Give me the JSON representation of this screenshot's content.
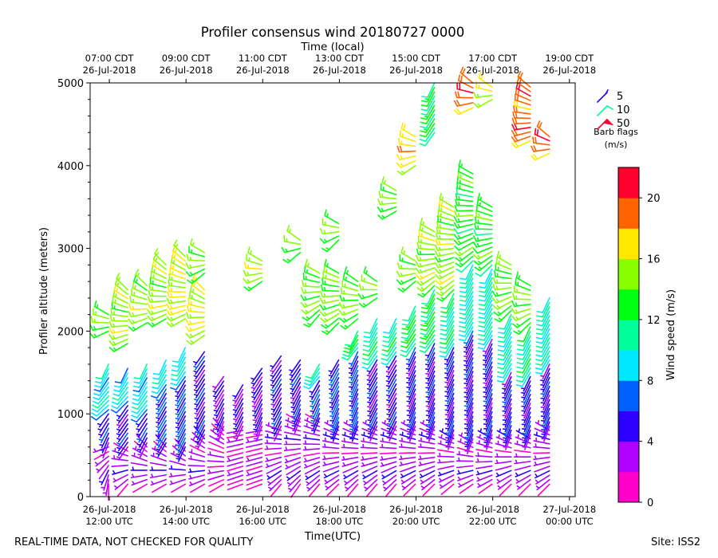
{
  "chart_data": {
    "type": "wind-barb-profile",
    "title": "Profiler consensus wind 20180727 0000",
    "xlabel": "Time(UTC)",
    "ylabel": "Profiler altitude (meters)",
    "top_axis_label": "Time (local)",
    "ylim": [
      0,
      5000
    ],
    "xlim_hours_utc": [
      11.5,
      24.15
    ],
    "y_ticks": [
      "0",
      "1000",
      "2000",
      "3000",
      "4000",
      "5000"
    ],
    "bottom_ticks": [
      {
        "hour": 12,
        "date": "26-Jul-2018",
        "time": "12:00 UTC"
      },
      {
        "hour": 14,
        "date": "26-Jul-2018",
        "time": "14:00 UTC"
      },
      {
        "hour": 16,
        "date": "26-Jul-2018",
        "time": "16:00 UTC"
      },
      {
        "hour": 18,
        "date": "26-Jul-2018",
        "time": "18:00 UTC"
      },
      {
        "hour": 20,
        "date": "26-Jul-2018",
        "time": "20:00 UTC"
      },
      {
        "hour": 22,
        "date": "26-Jul-2018",
        "time": "22:00 UTC"
      },
      {
        "hour": 24,
        "date": "27-Jul-2018",
        "time": "00:00 UTC"
      }
    ],
    "top_ticks": [
      {
        "hour": 12,
        "time": "07:00 CDT",
        "date": "26-Jul-2018"
      },
      {
        "hour": 14,
        "time": "09:00 CDT",
        "date": "26-Jul-2018"
      },
      {
        "hour": 16,
        "time": "11:00 CDT",
        "date": "26-Jul-2018"
      },
      {
        "hour": 18,
        "time": "13:00 CDT",
        "date": "26-Jul-2018"
      },
      {
        "hour": 20,
        "time": "15:00 CDT",
        "date": "26-Jul-2018"
      },
      {
        "hour": 22,
        "time": "17:00 CDT",
        "date": "26-Jul-2018"
      },
      {
        "hour": 24,
        "time": "19:00 CDT",
        "date": "26-Jul-2018"
      }
    ],
    "barb_legend": {
      "title": "Barb flags",
      "units": "(m/s)",
      "entries": [
        {
          "label": "5",
          "color": "#2b00ff"
        },
        {
          "label": "10",
          "color": "#00ff9a"
        },
        {
          "label": "50",
          "color": "#ff0030"
        }
      ]
    },
    "colorbar": {
      "label": "Wind speed (m/s)",
      "bounds": [
        0,
        2,
        4,
        6,
        8,
        10,
        12,
        14,
        16,
        18,
        20,
        22
      ],
      "tick_labels": [
        "0",
        "4",
        "8",
        "12",
        "16",
        "20"
      ],
      "colors": [
        "#ff00c8",
        "#b000ff",
        "#2b00ff",
        "#0060ff",
        "#00e8ff",
        "#00ff9a",
        "#00ff10",
        "#88ff00",
        "#ffe800",
        "#ff6400",
        "#ff0030"
      ]
    },
    "profile_times_hours_utc": [
      11.98,
      12.48,
      12.98,
      13.48,
      13.98,
      14.48,
      14.98,
      15.48,
      15.98,
      16.48,
      16.98,
      17.48,
      17.98,
      18.48,
      18.98,
      19.48,
      19.98,
      20.48,
      20.98,
      21.48,
      21.98,
      22.48,
      22.98,
      23.48
    ],
    "barb_sampling_note": "one barb per profile time and range gate, approximate speeds",
    "barb_profiles": [
      {
        "time": 11.98,
        "top": 2200,
        "segments": [
          [
            150,
            600,
            3,
            180,
            250
          ],
          [
            650,
            1000,
            5,
            200,
            215
          ],
          [
            1050,
            1600,
            9,
            230,
            205
          ],
          [
            2000,
            2200,
            14,
            245,
            300
          ]
        ]
      },
      {
        "time": 12.48,
        "top": 2500,
        "segments": [
          [
            150,
            550,
            3,
            220,
            300
          ],
          [
            600,
            1100,
            5,
            215,
            215
          ],
          [
            1150,
            1550,
            9,
            225,
            205
          ],
          [
            1850,
            2500,
            15,
            240,
            315
          ]
        ]
      },
      {
        "time": 12.98,
        "top": 2550,
        "segments": [
          [
            150,
            600,
            3,
            240,
            320
          ],
          [
            650,
            1000,
            5,
            205,
            215
          ],
          [
            1050,
            1600,
            9,
            220,
            205
          ],
          [
            2100,
            2550,
            15,
            240,
            315
          ]
        ]
      },
      {
        "time": 13.48,
        "top": 2800,
        "segments": [
          [
            150,
            600,
            3,
            240,
            320
          ],
          [
            650,
            1300,
            6,
            210,
            210
          ],
          [
            1350,
            1650,
            9,
            215,
            205
          ],
          [
            2150,
            2800,
            15,
            240,
            315
          ]
        ]
      },
      {
        "time": 13.98,
        "top": 3000,
        "segments": [
          [
            150,
            550,
            3,
            240,
            320
          ],
          [
            600,
            1400,
            6,
            205,
            210
          ],
          [
            1450,
            1800,
            9,
            215,
            205
          ],
          [
            2150,
            2900,
            16,
            240,
            315
          ]
        ]
      },
      {
        "time": 14.48,
        "top": 2950,
        "segments": [
          [
            150,
            700,
            3,
            240,
            320
          ],
          [
            750,
            1750,
            5,
            205,
            215
          ],
          [
            1950,
            2500,
            16,
            235,
            315
          ],
          [
            2700,
            2950,
            14,
            230,
            300
          ]
        ]
      },
      {
        "time": 14.98,
        "top": 1450,
        "segments": [
          [
            150,
            800,
            2,
            240,
            320
          ],
          [
            850,
            1450,
            4,
            200,
            215
          ]
        ]
      },
      {
        "time": 15.48,
        "top": 1350,
        "segments": [
          [
            150,
            800,
            2,
            250,
            260
          ],
          [
            850,
            1350,
            4,
            205,
            210
          ]
        ]
      },
      {
        "time": 15.98,
        "top": 1550,
        "segments": [
          [
            150,
            800,
            2,
            250,
            260
          ],
          [
            850,
            1550,
            4,
            200,
            215
          ],
          [
            2600,
            2850,
            15,
            235,
            300
          ]
        ]
      },
      {
        "time": 16.48,
        "top": 1700,
        "segments": [
          [
            150,
            800,
            3,
            220,
            290
          ],
          [
            850,
            1700,
            5,
            205,
            215
          ]
        ]
      },
      {
        "time": 16.98,
        "top": 1650,
        "segments": [
          [
            150,
            900,
            3,
            215,
            300
          ],
          [
            950,
            1650,
            5,
            200,
            215
          ],
          [
            2950,
            3100,
            14,
            230,
            305
          ]
        ]
      },
      {
        "time": 17.48,
        "top": 2700,
        "segments": [
          [
            150,
            900,
            3,
            220,
            300
          ],
          [
            950,
            1400,
            6,
            200,
            210
          ],
          [
            1450,
            1600,
            10,
            220,
            210
          ],
          [
            2200,
            2700,
            14,
            220,
            300
          ]
        ]
      },
      {
        "time": 17.98,
        "top": 3300,
        "segments": [
          [
            150,
            800,
            3,
            225,
            300
          ],
          [
            850,
            1650,
            6,
            200,
            210
          ],
          [
            2100,
            2700,
            14,
            225,
            300
          ],
          [
            3100,
            3300,
            14,
            225,
            300
          ]
        ]
      },
      {
        "time": 18.48,
        "top": 2600,
        "segments": [
          [
            150,
            800,
            3,
            220,
            300
          ],
          [
            850,
            1750,
            6,
            200,
            205
          ],
          [
            1800,
            2000,
            12,
            220,
            205
          ],
          [
            2150,
            2600,
            14,
            230,
            305
          ]
        ]
      },
      {
        "time": 18.98,
        "top": 2600,
        "segments": [
          [
            150,
            800,
            3,
            220,
            300
          ],
          [
            850,
            1650,
            5,
            205,
            210
          ],
          [
            1700,
            2150,
            11,
            215,
            205
          ],
          [
            2400,
            2600,
            14,
            235,
            305
          ]
        ]
      },
      {
        "time": 19.48,
        "top": 3700,
        "segments": [
          [
            150,
            800,
            3,
            220,
            300
          ],
          [
            850,
            1700,
            5,
            205,
            210
          ],
          [
            1750,
            2150,
            11,
            215,
            205
          ],
          [
            3450,
            3700,
            14,
            240,
            300
          ]
        ]
      },
      {
        "time": 19.98,
        "top": 4350,
        "segments": [
          [
            150,
            800,
            3,
            225,
            300
          ],
          [
            850,
            1800,
            5,
            200,
            205
          ],
          [
            1850,
            2300,
            12,
            215,
            205
          ],
          [
            2600,
            2850,
            14,
            230,
            300
          ],
          [
            4000,
            4350,
            17,
            235,
            300
          ]
        ]
      },
      {
        "time": 20.48,
        "top": 5000,
        "segments": [
          [
            150,
            800,
            3,
            225,
            300
          ],
          [
            850,
            1850,
            5,
            200,
            205
          ],
          [
            1900,
            2500,
            12,
            215,
            205
          ],
          [
            2550,
            3200,
            15,
            225,
            300
          ],
          [
            4400,
            5000,
            12,
            215,
            205
          ]
        ]
      },
      {
        "time": 20.98,
        "top": 3500,
        "segments": [
          [
            150,
            700,
            3,
            230,
            300
          ],
          [
            750,
            1800,
            5,
            200,
            205
          ],
          [
            1850,
            2450,
            11,
            210,
            205
          ],
          [
            2500,
            3500,
            15,
            225,
            300
          ]
        ]
      },
      {
        "time": 21.48,
        "top": 5000,
        "segments": [
          [
            150,
            650,
            3,
            235,
            300
          ],
          [
            700,
            2000,
            5,
            200,
            205
          ],
          [
            2050,
            2800,
            10,
            210,
            205
          ],
          [
            2850,
            3900,
            13,
            225,
            300
          ],
          [
            4700,
            5000,
            19,
            245,
            310
          ]
        ]
      },
      {
        "time": 21.98,
        "top": 4950,
        "segments": [
          [
            150,
            700,
            3,
            235,
            300
          ],
          [
            750,
            1900,
            5,
            200,
            205
          ],
          [
            1950,
            2750,
            10,
            210,
            205
          ],
          [
            2800,
            3500,
            13,
            225,
            300
          ],
          [
            4800,
            4950,
            16,
            240,
            305
          ]
        ]
      },
      {
        "time": 22.48,
        "top": 2800,
        "segments": [
          [
            150,
            700,
            3,
            225,
            300
          ],
          [
            750,
            1500,
            5,
            200,
            205
          ],
          [
            1550,
            2200,
            10,
            210,
            205
          ],
          [
            2250,
            2800,
            14,
            225,
            300
          ]
        ]
      },
      {
        "time": 22.98,
        "top": 4950,
        "segments": [
          [
            150,
            700,
            3,
            225,
            300
          ],
          [
            750,
            1450,
            5,
            200,
            205
          ],
          [
            1500,
            2050,
            11,
            210,
            205
          ],
          [
            2100,
            2550,
            14,
            225,
            300
          ],
          [
            4300,
            4950,
            19,
            245,
            310
          ]
        ]
      },
      {
        "time": 23.48,
        "top": 4350,
        "segments": [
          [
            150,
            800,
            3,
            225,
            300
          ],
          [
            850,
            1600,
            5,
            200,
            205
          ],
          [
            1650,
            2400,
            10,
            210,
            205
          ],
          [
            4150,
            4350,
            19,
            245,
            310
          ]
        ]
      }
    ]
  },
  "footer": {
    "disclaimer": "REAL-TIME DATA, NOT CHECKED FOR QUALITY",
    "site": "Site: ISS2"
  }
}
